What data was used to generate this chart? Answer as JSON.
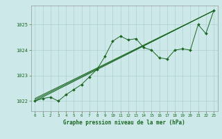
{
  "bg_color": "#cce8e8",
  "grid_color": "#aacccc",
  "line_color": "#1a6620",
  "marker_color": "#1a6620",
  "title": "Graphe pression niveau de la mer (hPa)",
  "xlim": [
    -0.5,
    23.5
  ],
  "ylim": [
    1021.6,
    1025.75
  ],
  "yticks": [
    1022,
    1023,
    1024,
    1025
  ],
  "xticks": [
    0,
    1,
    2,
    3,
    4,
    5,
    6,
    7,
    8,
    9,
    10,
    11,
    12,
    13,
    14,
    15,
    16,
    17,
    18,
    19,
    20,
    21,
    22,
    23
  ],
  "series0_x": [
    0,
    1,
    2,
    3,
    4,
    5,
    6,
    7,
    8,
    9,
    10,
    11,
    12,
    13,
    14,
    15,
    16,
    17,
    18,
    19,
    20,
    21,
    22,
    23
  ],
  "series0_y": [
    1022.0,
    1022.1,
    1022.15,
    1022.0,
    1022.25,
    1022.45,
    1022.65,
    1022.95,
    1023.25,
    1023.75,
    1024.35,
    1024.55,
    1024.4,
    1024.45,
    1024.1,
    1024.0,
    1023.7,
    1023.65,
    1024.0,
    1024.05,
    1024.0,
    1025.0,
    1024.65,
    1025.55
  ],
  "trend1_x": [
    0,
    23
  ],
  "trend1_y": [
    1022.0,
    1025.55
  ],
  "trend2_x": [
    0,
    23
  ],
  "trend2_y": [
    1022.05,
    1025.55
  ],
  "trend3_x": [
    0,
    23
  ],
  "trend3_y": [
    1022.1,
    1025.55
  ]
}
